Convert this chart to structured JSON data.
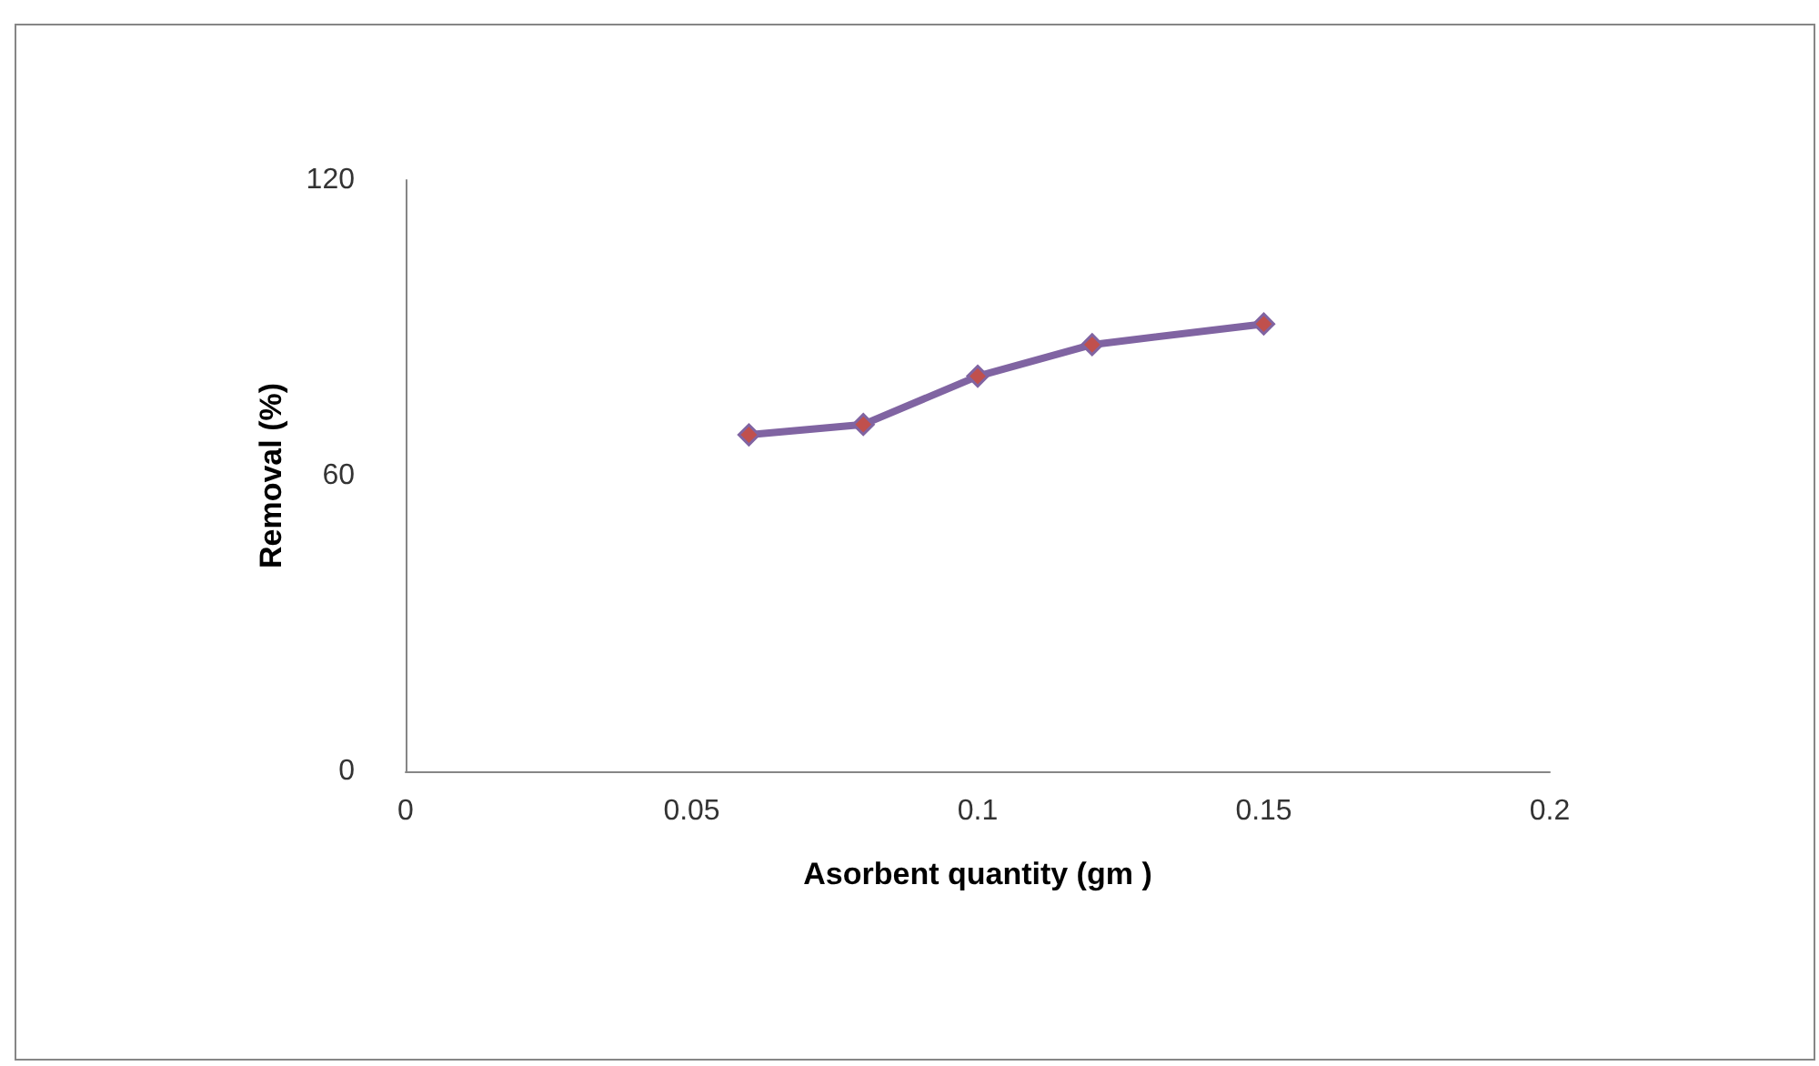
{
  "chart_data": {
    "type": "line",
    "xlabel": "Asorbent quantity (gm )",
    "ylabel": "Removal (%)",
    "series": [
      {
        "color": "#8064a2",
        "x": [
          0.06,
          0.08,
          0.1,
          0.12,
          0.15
        ],
        "values": [
          68.3,
          70.4,
          80.2,
          86.6,
          90.8
        ]
      }
    ],
    "xlim": [
      0,
      0.2
    ],
    "xticks": [
      0,
      0.05,
      0.1,
      0.15,
      0.2
    ],
    "ylim": [
      0,
      120
    ],
    "yticks": [
      0,
      60,
      120
    ],
    "grid": false,
    "marker": "diamond",
    "line_style": "solid"
  }
}
